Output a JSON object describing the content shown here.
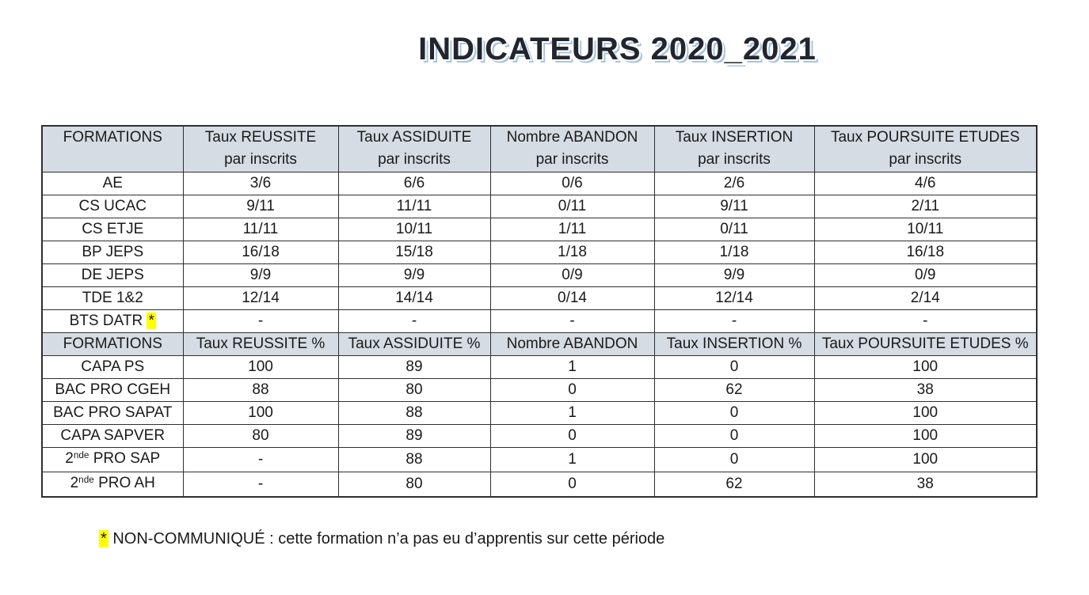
{
  "page": {
    "title": "INDICATEURS 2020_2021"
  },
  "colors": {
    "header_bg": "#d6dce4",
    "border": "#2f2f2f",
    "highlight": "#ffff00",
    "title_text": "#23252e",
    "title_shadow": "#a9c4de"
  },
  "table": {
    "sections": [
      {
        "header": [
          "FORMATIONS",
          "Taux REUSSITE\npar inscrits",
          "Taux ASSIDUITE\npar inscrits",
          "Nombre ABANDON\npar inscrits",
          "Taux INSERTION\npar inscrits",
          "Taux POURSUITE ETUDES\npar inscrits"
        ],
        "rows": [
          {
            "formation": "AE",
            "values": [
              "3/6",
              "6/6",
              "0/6",
              "2/6",
              "4/6"
            ]
          },
          {
            "formation": "CS UCAC",
            "values": [
              "9/11",
              "11/11",
              "0/11",
              "9/11",
              "2/11"
            ]
          },
          {
            "formation": "CS ETJE",
            "values": [
              "11/11",
              "10/11",
              "1/11",
              "0/11",
              "10/11"
            ]
          },
          {
            "formation": "BP JEPS",
            "values": [
              "16/18",
              "15/18",
              "1/18",
              "1/18",
              "16/18"
            ]
          },
          {
            "formation": "DE JEPS",
            "values": [
              "9/9",
              "9/9",
              "0/9",
              "9/9",
              "0/9"
            ]
          },
          {
            "formation": "TDE 1&2",
            "values": [
              "12/14",
              "14/14",
              "0/14",
              "12/14",
              "2/14"
            ]
          },
          {
            "formation": "BTS DATR",
            "marker": "*",
            "values": [
              "-",
              "-",
              "-",
              "-",
              "-"
            ]
          }
        ]
      },
      {
        "header": [
          "FORMATIONS",
          "Taux REUSSITE %",
          "Taux ASSIDUITE %",
          "Nombre ABANDON",
          "Taux INSERTION %",
          "Taux POURSUITE ETUDES %"
        ],
        "rows": [
          {
            "formation": "CAPA PS",
            "values": [
              "100",
              "89",
              "1",
              "0",
              "100"
            ]
          },
          {
            "formation": "BAC PRO CGEH",
            "values": [
              "88",
              "80",
              "0",
              "62",
              "38"
            ]
          },
          {
            "formation": "BAC PRO SAPAT",
            "values": [
              "100",
              "88",
              "1",
              "0",
              "100"
            ]
          },
          {
            "formation": "CAPA SAPVER",
            "values": [
              "80",
              "89",
              "0",
              "0",
              "100"
            ]
          },
          {
            "formation": "2nde PRO SAP",
            "sup": "nde",
            "values": [
              "-",
              "88",
              "1",
              "0",
              "100"
            ]
          },
          {
            "formation": "2nde PRO AH",
            "sup": "nde",
            "values": [
              "-",
              "80",
              "0",
              "62",
              "38"
            ]
          }
        ]
      }
    ]
  },
  "footnote": {
    "marker": "*",
    "text": "NON-COMMUNIQUÉ : cette formation n’a pas eu d’apprentis sur cette période"
  }
}
